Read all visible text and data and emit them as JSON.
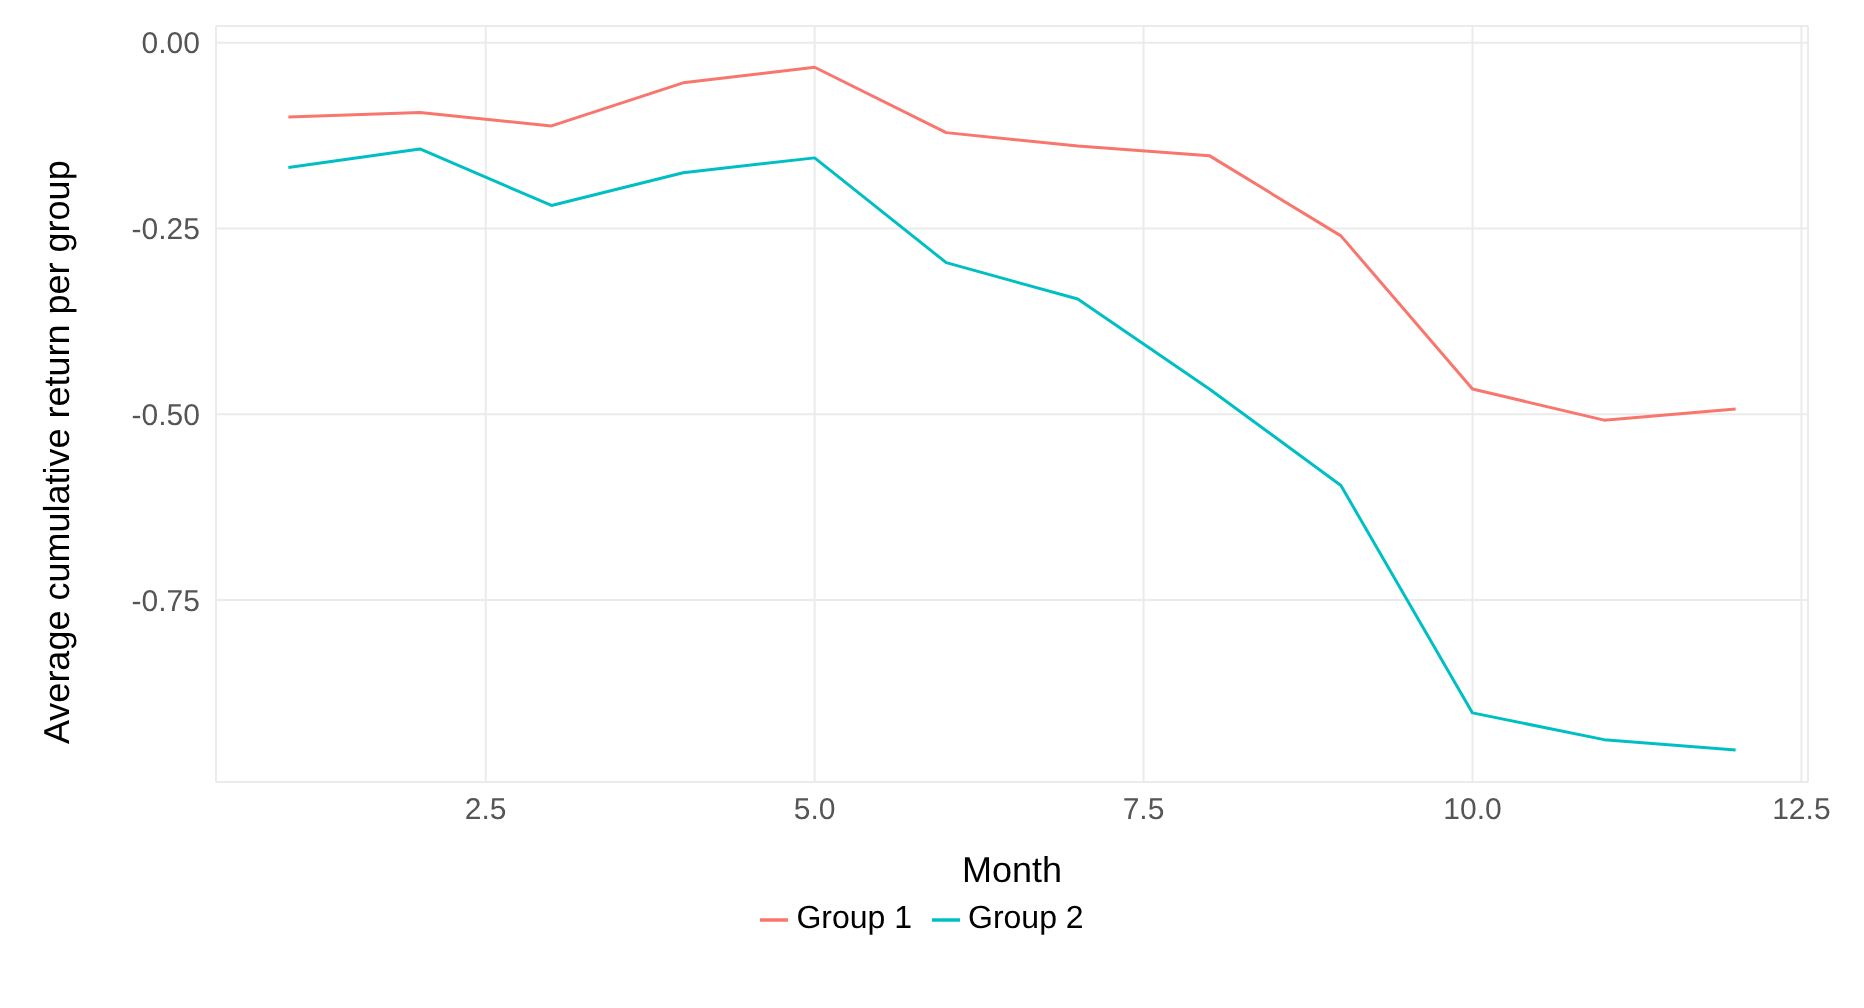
{
  "chart_data": {
    "type": "line",
    "xlabel": "Month",
    "ylabel": "Average cumulative return per group",
    "x": [
      1,
      2,
      3,
      4,
      5,
      6,
      7,
      8,
      9,
      10,
      11,
      12
    ],
    "series": [
      {
        "name": "Group 1",
        "color": "#f8766d",
        "values": [
          -0.1,
          -0.094,
          -0.112,
          -0.054,
          -0.033,
          -0.121,
          -0.139,
          -0.152,
          -0.26,
          -0.466,
          -0.508,
          -0.493
        ]
      },
      {
        "name": "Group 2",
        "color": "#00bfc4",
        "values": [
          -0.168,
          -0.143,
          -0.219,
          -0.175,
          -0.155,
          -0.296,
          -0.345,
          -0.466,
          -0.596,
          -0.902,
          -0.938,
          -0.952
        ]
      }
    ],
    "xlim": [
      0.45,
      12.55
    ],
    "xticks": [
      {
        "value": 2.5,
        "label": "2.5"
      },
      {
        "value": 5,
        "label": "5.0"
      },
      {
        "value": 7.5,
        "label": "7.5"
      },
      {
        "value": 10,
        "label": "10.0"
      },
      {
        "value": 12.5,
        "label": "12.5"
      }
    ],
    "ylim": [
      -0.995,
      0.0225
    ],
    "yticks": [
      {
        "value": 0,
        "label": "0.00"
      },
      -0.25,
      {
        "value": -0.5,
        "label": "-0.50"
      },
      -0.75
    ],
    "grid": true,
    "legend": "bottom",
    "marker": "none",
    "line_style": "solid"
  }
}
